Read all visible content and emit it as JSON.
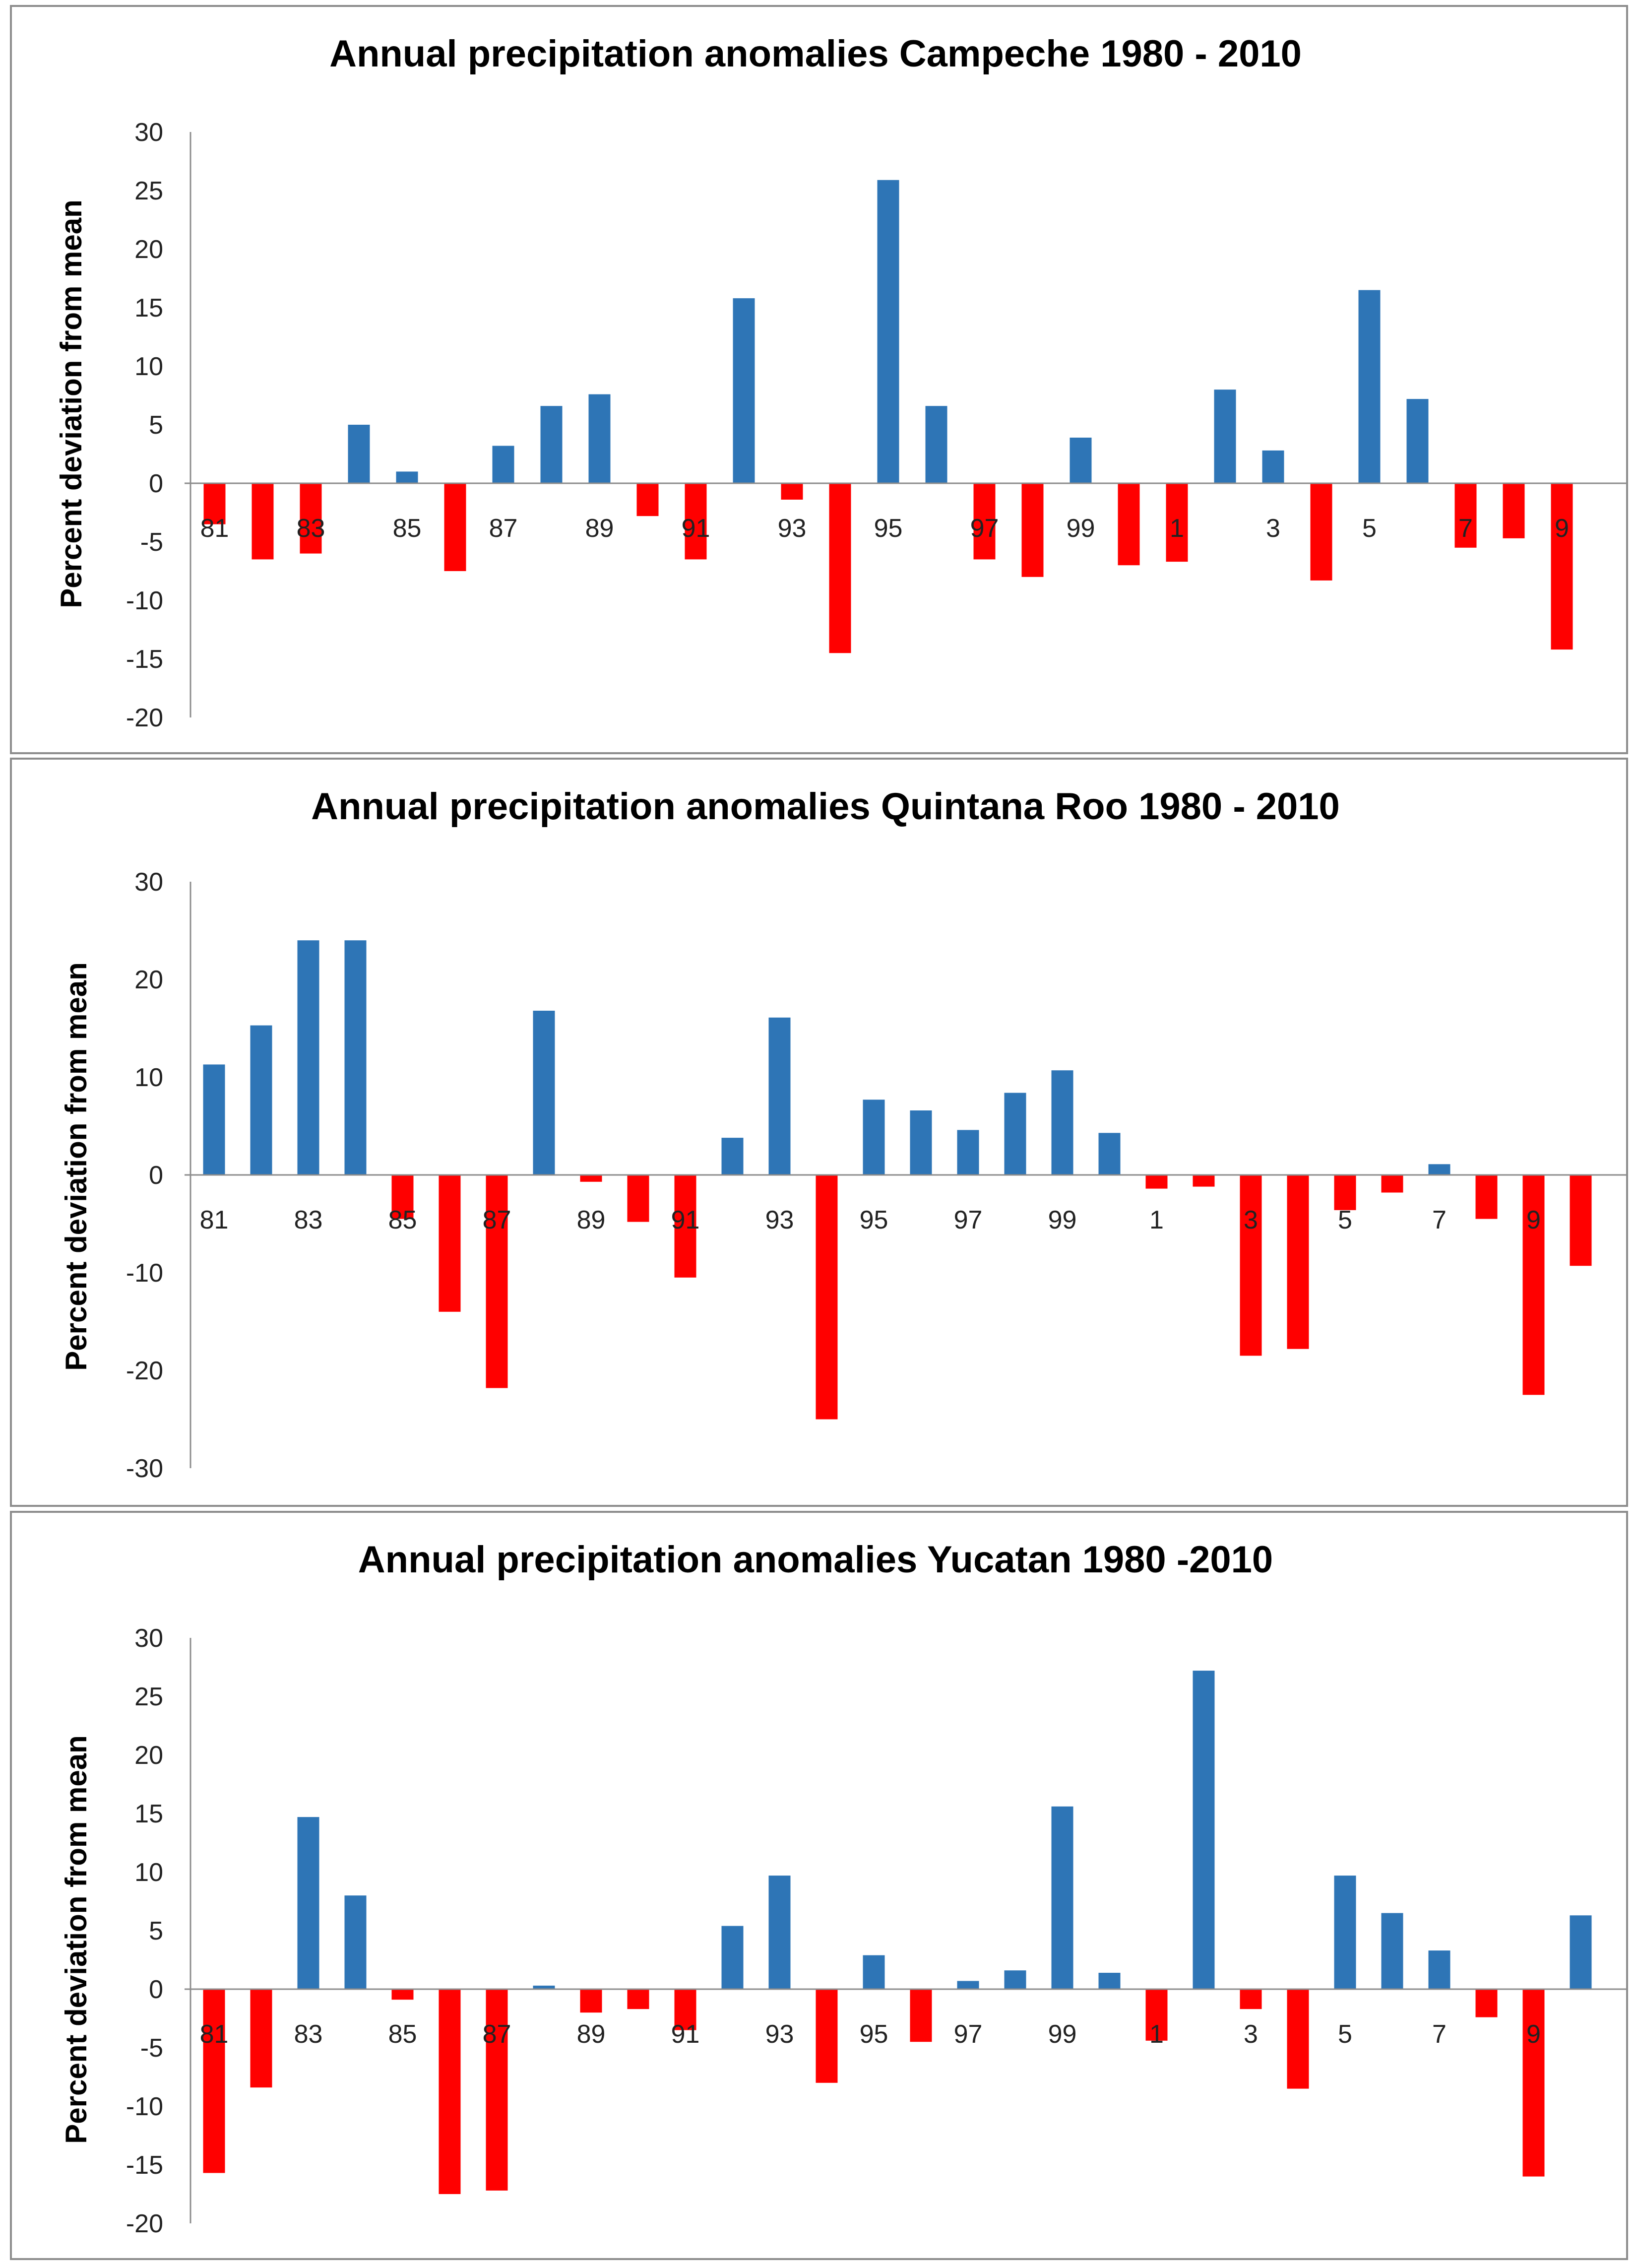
{
  "chart_data": [
    {
      "type": "bar",
      "title": "Annual precipitation anomalies Campeche 1980 - 2010",
      "ylabel": "Percent deviation from mean",
      "xlabel": "",
      "ylim": [
        -20,
        30
      ],
      "yticks": [
        "30",
        "25",
        "20",
        "15",
        "10",
        "5",
        "0",
        "-5",
        "-10",
        "-15",
        "-20"
      ],
      "categories": [
        "81",
        "82",
        "83",
        "84",
        "85",
        "86",
        "87",
        "88",
        "89",
        "90",
        "91",
        "92",
        "93",
        "94",
        "95",
        "96",
        "97",
        "98",
        "99",
        "0",
        "1",
        "2",
        "3",
        "4",
        "5",
        "6",
        "7",
        "8",
        "9"
      ],
      "category_labels": [
        "81",
        "83",
        "85",
        "87",
        "89",
        "91",
        "93",
        "95",
        "97",
        "99",
        "1",
        "3",
        "5",
        "7",
        "9"
      ],
      "values": [
        -3.5,
        -6.5,
        -6,
        5,
        1,
        -7.5,
        3.2,
        6.6,
        7.6,
        -2.8,
        -6.5,
        15.8,
        -1.4,
        -14.5,
        25.9,
        6.6,
        -6.5,
        -8,
        3.9,
        -7,
        -6.7,
        8,
        2.8,
        -8.3,
        16.5,
        7.2,
        -5.5,
        -4.7,
        -14.2
      ],
      "colors": {
        "positive": "#2e75b6",
        "negative": "#ff0000"
      }
    },
    {
      "type": "bar",
      "title": "Annual precipitation anomalies Quintana Roo 1980 - 2010",
      "ylabel": "Percent deviation from mean",
      "xlabel": "",
      "ylim": [
        -30,
        30
      ],
      "yticks": [
        "30",
        "20",
        "10",
        "0",
        "-10",
        "-20",
        "-30"
      ],
      "categories": [
        "81",
        "82",
        "83",
        "84",
        "85",
        "86",
        "87",
        "88",
        "89",
        "90",
        "91",
        "92",
        "93",
        "94",
        "95",
        "96",
        "97",
        "98",
        "99",
        "0",
        "1",
        "2",
        "3",
        "4",
        "5",
        "6",
        "7",
        "8",
        "9",
        "10"
      ],
      "category_labels": [
        "81",
        "83",
        "85",
        "87",
        "89",
        "91",
        "93",
        "95",
        "97",
        "99",
        "1",
        "3",
        "5",
        "7",
        "9"
      ],
      "values": [
        11.3,
        15.3,
        24,
        24,
        -4.5,
        -14,
        -21.8,
        16.8,
        -0.7,
        -4.8,
        -10.5,
        3.8,
        16.1,
        -25,
        7.7,
        6.6,
        4.6,
        8.4,
        10.7,
        4.3,
        -1.4,
        -1.2,
        -18.5,
        -17.8,
        -3.6,
        -1.8,
        1.1,
        -4.5,
        -22.5,
        -9.3
      ],
      "colors": {
        "positive": "#2e75b6",
        "negative": "#ff0000"
      }
    },
    {
      "type": "bar",
      "title": "Annual precipitation anomalies Yucatan 1980 -2010",
      "ylabel": "Percent deviation from mean",
      "xlabel": "",
      "ylim": [
        -20,
        30
      ],
      "yticks": [
        "30",
        "25",
        "20",
        "15",
        "10",
        "5",
        "0",
        "-5",
        "-10",
        "-15",
        "-20"
      ],
      "categories": [
        "81",
        "82",
        "83",
        "84",
        "85",
        "86",
        "87",
        "88",
        "89",
        "90",
        "91",
        "92",
        "93",
        "94",
        "95",
        "96",
        "97",
        "98",
        "99",
        "0",
        "1",
        "2",
        "3",
        "4",
        "5",
        "6",
        "7",
        "8",
        "9",
        "10"
      ],
      "category_labels": [
        "81",
        "83",
        "85",
        "87",
        "89",
        "91",
        "93",
        "95",
        "97",
        "99",
        "1",
        "3",
        "5",
        "7",
        "9"
      ],
      "values": [
        -15.7,
        -8.4,
        14.7,
        8,
        -0.9,
        -17.5,
        -17.2,
        0.3,
        -2,
        -1.7,
        -3.5,
        5.4,
        9.7,
        -8,
        2.9,
        -4.5,
        0.7,
        1.6,
        15.6,
        1.4,
        -4.4,
        27.2,
        -1.7,
        -8.5,
        9.7,
        6.5,
        3.3,
        -2.4,
        -16,
        6.3
      ],
      "colors": {
        "positive": "#2e75b6",
        "negative": "#ff0000"
      }
    }
  ]
}
